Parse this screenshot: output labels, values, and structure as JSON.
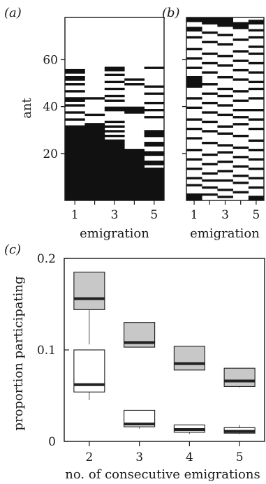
{
  "chart_data": [
    {
      "id": "a",
      "type": "heatmap",
      "panel_label": "(a)",
      "xlabel": "emigration",
      "ylabel": "ant",
      "x_tick_labels": [
        "1",
        "3",
        "5"
      ],
      "y_tick_labels": [
        "20",
        "40",
        "60"
      ],
      "columns": 5,
      "ylim": [
        0,
        78
      ],
      "participation_runs": [
        [
          [
            0,
            32
          ],
          [
            34,
            35
          ],
          [
            37,
            38
          ],
          [
            40,
            41
          ],
          [
            42,
            44
          ],
          [
            46,
            47
          ],
          [
            49,
            50
          ],
          [
            51,
            53
          ],
          [
            54,
            56
          ]
        ],
        [
          [
            0,
            33
          ],
          [
            36,
            37
          ],
          [
            43,
            44
          ]
        ],
        [
          [
            0,
            26
          ],
          [
            27,
            28
          ],
          [
            29,
            30
          ],
          [
            31,
            32
          ],
          [
            33,
            34
          ],
          [
            38,
            40
          ],
          [
            42,
            43
          ],
          [
            44,
            45
          ],
          [
            47,
            48
          ],
          [
            50,
            51
          ],
          [
            53,
            54
          ],
          [
            55,
            57
          ]
        ],
        [
          [
            0,
            22
          ],
          [
            37,
            40
          ],
          [
            49,
            50
          ],
          [
            51,
            52
          ]
        ],
        [
          [
            0,
            14
          ],
          [
            15,
            17
          ],
          [
            19,
            21
          ],
          [
            23,
            25
          ],
          [
            27,
            30
          ],
          [
            35,
            36
          ],
          [
            38,
            39
          ],
          [
            41,
            42
          ],
          [
            45,
            46
          ],
          [
            48,
            49
          ],
          [
            56,
            57
          ]
        ]
      ]
    },
    {
      "id": "b",
      "type": "heatmap",
      "panel_label": "(b)",
      "xlabel": "emigration",
      "x_tick_labels": [
        "1",
        "3",
        "5"
      ],
      "columns": 5,
      "ylim": [
        0,
        78
      ],
      "participation_runs": [
        [
          [
            0,
            3
          ],
          [
            6,
            7
          ],
          [
            9,
            10
          ],
          [
            13,
            14
          ],
          [
            17,
            18
          ],
          [
            21,
            22
          ],
          [
            26,
            27
          ],
          [
            30,
            31
          ],
          [
            34,
            35
          ],
          [
            39,
            40
          ],
          [
            43,
            44
          ],
          [
            48,
            53
          ],
          [
            56,
            57
          ],
          [
            60,
            61
          ],
          [
            64,
            65
          ],
          [
            69,
            70
          ],
          [
            72,
            74
          ],
          [
            76,
            78
          ]
        ],
        [
          [
            2,
            3
          ],
          [
            5,
            6
          ],
          [
            8,
            9
          ],
          [
            11,
            12
          ],
          [
            15,
            16
          ],
          [
            19,
            20
          ],
          [
            24,
            25
          ],
          [
            29,
            30
          ],
          [
            33,
            34
          ],
          [
            37,
            38
          ],
          [
            41,
            42
          ],
          [
            45,
            46
          ],
          [
            49,
            50
          ],
          [
            54,
            55
          ],
          [
            58,
            59
          ],
          [
            62,
            63
          ],
          [
            67,
            68
          ],
          [
            71,
            72
          ],
          [
            75,
            78
          ]
        ],
        [
          [
            1,
            2
          ],
          [
            4,
            5
          ],
          [
            8,
            9
          ],
          [
            12,
            13
          ],
          [
            16,
            17
          ],
          [
            20,
            21
          ],
          [
            23,
            24
          ],
          [
            28,
            29
          ],
          [
            31,
            32
          ],
          [
            36,
            37
          ],
          [
            40,
            41
          ],
          [
            44,
            45
          ],
          [
            47,
            48
          ],
          [
            52,
            53
          ],
          [
            57,
            58
          ],
          [
            61,
            62
          ],
          [
            66,
            67
          ],
          [
            70,
            71
          ],
          [
            74,
            78
          ]
        ],
        [
          [
            3,
            4
          ],
          [
            7,
            8
          ],
          [
            10,
            11
          ],
          [
            14,
            15
          ],
          [
            18,
            19
          ],
          [
            22,
            23
          ],
          [
            27,
            28
          ],
          [
            32,
            33
          ],
          [
            35,
            36
          ],
          [
            38,
            39
          ],
          [
            42,
            43
          ],
          [
            46,
            47
          ],
          [
            51,
            52
          ],
          [
            55,
            56
          ],
          [
            59,
            60
          ],
          [
            63,
            64
          ],
          [
            68,
            69
          ],
          [
            73,
            76
          ]
        ],
        [
          [
            0,
            2
          ],
          [
            5,
            6
          ],
          [
            9,
            10
          ],
          [
            13,
            14
          ],
          [
            17,
            18
          ],
          [
            21,
            22
          ],
          [
            25,
            26
          ],
          [
            30,
            31
          ],
          [
            34,
            35
          ],
          [
            38,
            39
          ],
          [
            43,
            44
          ],
          [
            47,
            48
          ],
          [
            50,
            51
          ],
          [
            54,
            55
          ],
          [
            58,
            59
          ],
          [
            62,
            63
          ],
          [
            65,
            66
          ],
          [
            69,
            70
          ],
          [
            72,
            73
          ],
          [
            75,
            77
          ]
        ]
      ]
    },
    {
      "id": "c",
      "type": "box",
      "panel_label": "(c)",
      "xlabel": "no. of consecutive emigrations",
      "ylabel": "proportion participating",
      "categories": [
        "2",
        "3",
        "4",
        "5"
      ],
      "y_tick_labels": [
        "0",
        "0.1",
        "0.2"
      ],
      "ylim": [
        0,
        0.2
      ],
      "series": [
        {
          "color": "#c8c8c8",
          "boxes": [
            {
              "min": 0.106,
              "q1": 0.144,
              "median": 0.156,
              "q3": 0.185,
              "max": 0.185
            },
            {
              "min": 0.103,
              "q1": 0.103,
              "median": 0.108,
              "q3": 0.13,
              "max": 0.13
            },
            {
              "min": 0.078,
              "q1": 0.078,
              "median": 0.085,
              "q3": 0.104,
              "max": 0.104
            },
            {
              "min": 0.059,
              "q1": 0.06,
              "median": 0.066,
              "q3": 0.08,
              "max": 0.08
            }
          ]
        },
        {
          "color": "#ffffff",
          "boxes": [
            {
              "min": 0.045,
              "q1": 0.054,
              "median": 0.062,
              "q3": 0.1,
              "max": 0.1
            },
            {
              "min": 0.014,
              "q1": 0.016,
              "median": 0.019,
              "q3": 0.034,
              "max": 0.034
            },
            {
              "min": 0.008,
              "q1": 0.01,
              "median": 0.013,
              "q3": 0.018,
              "max": 0.018
            },
            {
              "min": 0.008,
              "q1": 0.009,
              "median": 0.011,
              "q3": 0.015,
              "max": 0.018
            }
          ]
        }
      ]
    }
  ]
}
